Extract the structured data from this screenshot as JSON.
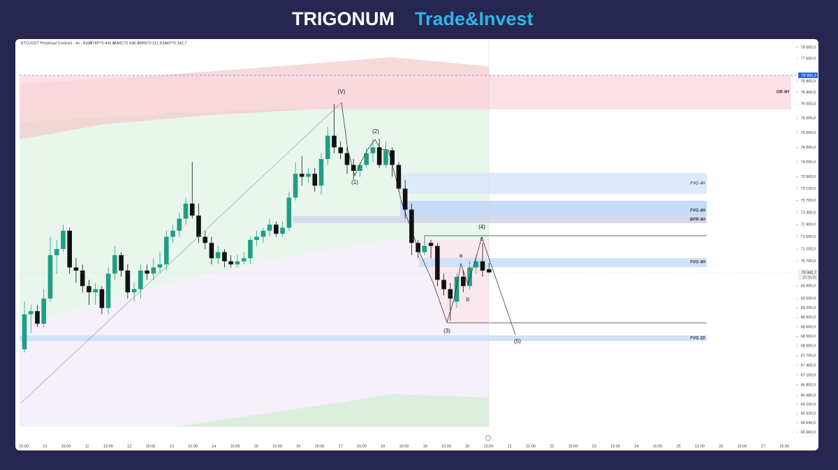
{
  "header": {
    "brand": "TRIGONUM",
    "product": "Trade&Invest"
  },
  "chart_data": {
    "type": "candlestick",
    "symbol": "BTCUSDT Perpetual Contract · 4ч · Bybit",
    "ohlc_labels": [
      "ОТКР70 443,9",
      "МАКС70 648,0",
      "МИН70 311,9",
      "ЗАКР70 342,7"
    ],
    "log": true,
    "up_color": "#1f9e85",
    "down_color": "#111111",
    "ylim": [
      64940,
      78250
    ],
    "yticks": [
      {
        "value": 78000,
        "label": "78 000,0"
      },
      {
        "value": 77600,
        "label": "77 600,0"
      },
      {
        "value": 76800,
        "label": "76 800,0"
      },
      {
        "value": 76400,
        "label": "76 400,0"
      },
      {
        "value": 76000,
        "label": "76 000,0"
      },
      {
        "value": 75500,
        "label": "75 500,0"
      },
      {
        "value": 75000,
        "label": "75 000,0"
      },
      {
        "value": 74500,
        "label": "74 500,0"
      },
      {
        "value": 74000,
        "label": "74 000,0"
      },
      {
        "value": 73500,
        "label": "73 500,0"
      },
      {
        "value": 73100,
        "label": "73 100,0"
      },
      {
        "value": 72700,
        "label": "72 700,0"
      },
      {
        "value": 72300,
        "label": "72 300,0"
      },
      {
        "value": 71900,
        "label": "71 900,0"
      },
      {
        "value": 71500,
        "label": "71 500,0"
      },
      {
        "value": 71100,
        "label": "71 100,0"
      },
      {
        "value": 70700,
        "label": "70 700,0"
      },
      {
        "value": 69900,
        "label": "69 900,0"
      },
      {
        "value": 69500,
        "label": "69 500,0"
      },
      {
        "value": 69200,
        "label": "69 200,0"
      },
      {
        "value": 68900,
        "label": "68 900,0"
      },
      {
        "value": 68600,
        "label": "68 600,0"
      },
      {
        "value": 68300,
        "label": "68 300,0"
      },
      {
        "value": 68000,
        "label": "68 000,0"
      },
      {
        "value": 67700,
        "label": "67 700,0"
      },
      {
        "value": 67400,
        "label": "67 400,0"
      },
      {
        "value": 67100,
        "label": "67 100,0"
      },
      {
        "value": 66800,
        "label": "66 800,0"
      },
      {
        "value": 66480,
        "label": "66 480,0"
      },
      {
        "value": 66200,
        "label": "66 200,0"
      },
      {
        "value": 65920,
        "label": "65 920,0"
      },
      {
        "value": 65640,
        "label": "65 640,0"
      },
      {
        "value": 65360,
        "label": "65 360,0"
      }
    ],
    "xlabels": [
      "15:00",
      "10",
      "15:00",
      "11",
      "15:00",
      "12",
      "15:00",
      "13",
      "15:00",
      "14",
      "15:00",
      "15",
      "15:00",
      "16",
      "15:00",
      "17",
      "15:00",
      "18",
      "15:00",
      "19",
      "15:00",
      "20",
      "15:00",
      "21",
      "15:00",
      "22",
      "15:00",
      "23",
      "15:00",
      "24",
      "15:00",
      "25",
      "15:00",
      "26",
      "15:00",
      "27",
      "15:00"
    ],
    "open": [
      67900,
      69000,
      69100,
      68700,
      69500,
      70900,
      71100,
      71700,
      70500,
      70400,
      69900,
      69700,
      69800,
      69200,
      70300,
      70900,
      70400,
      69700,
      69800,
      70400,
      70300,
      70500,
      70600,
      71500,
      71700,
      72100,
      72600,
      72200,
      71500,
      71300,
      70800,
      71000,
      70700,
      70600,
      70700,
      70800,
      71400,
      71500,
      71700,
      71900,
      71600,
      71800,
      72800,
      73600,
      73500,
      73600,
      73200,
      74100,
      74900,
      74500,
      74300,
      73900,
      73700,
      73900,
      74300,
      74500,
      73900,
      74400,
      73900,
      73100,
      72400,
      71300,
      71000,
      71300,
      71200,
      70100,
      69800,
      69400,
      70200,
      69900,
      70500,
      70700,
      70443.9
    ],
    "high": [
      69400,
      69300,
      69300,
      69800,
      71500,
      71400,
      71900,
      71800,
      70800,
      70600,
      70100,
      70000,
      69900,
      70500,
      71200,
      71000,
      70600,
      70000,
      70600,
      70600,
      70800,
      71000,
      71700,
      71900,
      72300,
      72800,
      74000,
      72600,
      71700,
      71500,
      71200,
      71100,
      70900,
      70900,
      71000,
      71500,
      71700,
      71800,
      72100,
      72000,
      72000,
      73000,
      74000,
      74200,
      73800,
      73800,
      74300,
      75200,
      76000,
      74700,
      74500,
      74100,
      74000,
      74500,
      74800,
      74800,
      74700,
      74500,
      74000,
      73400,
      72600,
      71400,
      71500,
      71400,
      71300,
      70300,
      70000,
      70300,
      70400,
      70700,
      70900,
      71300,
      70648
    ],
    "low": [
      67800,
      68400,
      68600,
      68600,
      69400,
      70300,
      71000,
      70300,
      70000,
      69700,
      69300,
      69300,
      69000,
      69000,
      70100,
      70200,
      69500,
      69400,
      69500,
      70100,
      70100,
      70300,
      70400,
      71300,
      71500,
      71900,
      72100,
      71300,
      71100,
      70600,
      70600,
      70500,
      70500,
      70500,
      70600,
      70600,
      71200,
      71300,
      71500,
      71500,
      71500,
      71700,
      72700,
      73200,
      73300,
      73000,
      72900,
      73900,
      74300,
      74100,
      73600,
      73400,
      73500,
      73800,
      74000,
      73800,
      73800,
      73500,
      73000,
      72100,
      70900,
      70800,
      70900,
      70800,
      69900,
      69600,
      68800,
      69200,
      69700,
      69800,
      70300,
      70200,
      70311.9
    ],
    "close": [
      69000,
      69100,
      68700,
      69500,
      70900,
      71100,
      71700,
      70500,
      70400,
      69900,
      69700,
      69800,
      69200,
      70300,
      70900,
      70400,
      69700,
      69800,
      70400,
      70300,
      70500,
      70600,
      71500,
      71700,
      72100,
      72600,
      72200,
      71500,
      71300,
      70800,
      71000,
      70700,
      70600,
      70700,
      70800,
      71400,
      71500,
      71700,
      71900,
      71600,
      71800,
      72800,
      73600,
      73500,
      73600,
      73200,
      74100,
      74900,
      74500,
      74300,
      73900,
      73700,
      73900,
      74300,
      74500,
      73900,
      74400,
      73900,
      73100,
      72400,
      71300,
      71000,
      71200,
      71200,
      70100,
      69800,
      69500,
      70200,
      69900,
      70500,
      70700,
      70400,
      70342.7
    ],
    "zones": [
      "OB 4H",
      "FVG 4H",
      "FVG 4H",
      "BPR 4H",
      "FVG 4H",
      "FVG 1D"
    ],
    "waves": [
      "(V)",
      "(1)",
      "(2)",
      "(3)",
      "(4)",
      "(5)",
      "a",
      "b",
      "c"
    ],
    "price_tags": [
      "76 991,2",
      "70 342,7",
      "03:26:55"
    ]
  }
}
